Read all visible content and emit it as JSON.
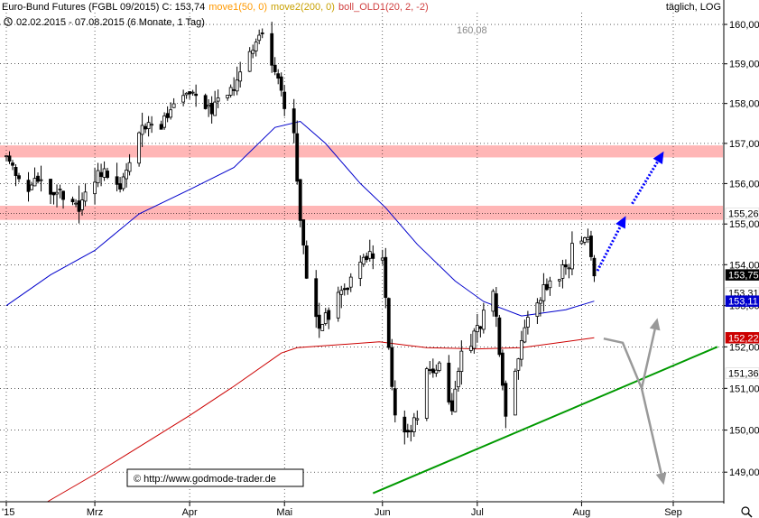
{
  "header": {
    "instrument": "Euro-Bund Futures (FGBL 09/2015) C: 153,74",
    "move1": "move1(50, 0)",
    "move2": "move2(200, 0)",
    "boll": "boll_OLD1(20, 2, -2)",
    "interval": "täglich, LOG",
    "daterange": "02.02.2015 - 07.08.2015 (6 Monate, 1 Tag)",
    "clock_icon": "clock-icon"
  },
  "watermark": "© http://www.godmode-trader.de",
  "high_annotation": "160,08",
  "colors": {
    "move1": "#ff9900",
    "move2": "#c8a000",
    "boll": "#d04040",
    "candle": "#000000",
    "ma50_line": "#0000cc",
    "ma200_line": "#cc0000",
    "zone": "#ffb6b6",
    "trend_line": "#009900",
    "bull_arrow": "#0000ff",
    "scenario_arrow": "#999999"
  },
  "chart_data": {
    "type": "candlestick",
    "ylim": [
      148.3,
      160.3
    ],
    "xlabel": "",
    "ylabel": "",
    "yticks": [
      {
        "value": 149,
        "label": "149,00"
      },
      {
        "value": 150,
        "label": "150,00"
      },
      {
        "value": 151,
        "label": "151,00"
      },
      {
        "value": 152,
        "label": "152,00"
      },
      {
        "value": 153,
        "label": "153,00"
      },
      {
        "value": 154,
        "label": "154,00"
      },
      {
        "value": 155,
        "label": "155,00"
      },
      {
        "value": 156,
        "label": "156,00"
      },
      {
        "value": 157,
        "label": "157,00"
      },
      {
        "value": 158,
        "label": "158,00"
      },
      {
        "value": 159,
        "label": "159,00"
      },
      {
        "value": 160,
        "label": "160,00"
      }
    ],
    "xticks": [
      {
        "date": "2015-02-02",
        "label": "'15"
      },
      {
        "date": "2015-03-02",
        "label": "Mrz"
      },
      {
        "date": "2015-04-01",
        "label": "Apr"
      },
      {
        "date": "2015-05-01",
        "label": "Mai"
      },
      {
        "date": "2015-06-01",
        "label": "Jun"
      },
      {
        "date": "2015-07-01",
        "label": "Jul"
      },
      {
        "date": "2015-08-03",
        "label": "Aug"
      },
      {
        "date": "2015-09-01",
        "label": "Sep"
      }
    ],
    "price_tags": [
      {
        "value": 155.26,
        "label": "155,26",
        "bg": "#ffffff",
        "fg": "#000000"
      },
      {
        "value": 153.75,
        "label": "153,75",
        "bg": "#000000",
        "fg": "#ffffff"
      },
      {
        "value": 153.31,
        "label": "153,31",
        "bg": "#ffffff",
        "fg": "#000000"
      },
      {
        "value": 153.11,
        "label": "153,11",
        "bg": "#0000cc",
        "fg": "#ffffff"
      },
      {
        "value": 152.22,
        "label": "152,22",
        "bg": "#cc0000",
        "fg": "#ffffff"
      },
      {
        "value": 151.36,
        "label": "151,36",
        "bg": "#ffffff",
        "fg": "#000000"
      }
    ],
    "zones": [
      {
        "from": 156.65,
        "to": 156.95
      },
      {
        "from": 155.1,
        "to": 155.45
      }
    ],
    "ma50": [
      [
        "2015-02-02",
        153.0
      ],
      [
        "2015-02-16",
        153.75
      ],
      [
        "2015-03-02",
        154.35
      ],
      [
        "2015-03-16",
        155.25
      ],
      [
        "2015-04-01",
        155.85
      ],
      [
        "2015-04-15",
        156.4
      ],
      [
        "2015-04-28",
        157.4
      ],
      [
        "2015-05-06",
        157.55
      ],
      [
        "2015-05-14",
        157.0
      ],
      [
        "2015-05-25",
        156.0
      ],
      [
        "2015-06-02",
        155.4
      ],
      [
        "2015-06-12",
        154.5
      ],
      [
        "2015-06-24",
        153.6
      ],
      [
        "2015-07-03",
        153.1
      ],
      [
        "2015-07-15",
        152.75
      ],
      [
        "2015-07-29",
        152.9
      ],
      [
        "2015-08-07",
        153.11
      ]
    ],
    "ma200": [
      [
        "2015-02-15",
        148.3
      ],
      [
        "2015-03-02",
        148.95
      ],
      [
        "2015-03-16",
        149.6
      ],
      [
        "2015-04-01",
        150.35
      ],
      [
        "2015-04-15",
        151.05
      ],
      [
        "2015-04-30",
        151.85
      ],
      [
        "2015-05-05",
        151.98
      ],
      [
        "2015-05-31",
        152.12
      ],
      [
        "2015-06-15",
        151.98
      ],
      [
        "2015-07-01",
        151.95
      ],
      [
        "2015-07-15",
        151.98
      ],
      [
        "2015-08-07",
        152.22
      ]
    ],
    "trend_line": [
      [
        "2015-05-29",
        148.5
      ],
      [
        "2015-09-15",
        152.0
      ]
    ],
    "bull_arrows": [
      {
        "from": [
          "2015-08-08",
          153.85
        ],
        "to": [
          "2015-08-17",
          155.2
        ]
      },
      {
        "from": [
          "2015-08-19",
          155.5
        ],
        "to": [
          "2015-08-29",
          156.8
        ]
      }
    ],
    "scenario_path": [
      [
        "2015-08-10",
        152.2
      ],
      [
        "2015-08-16",
        152.1
      ],
      [
        "2015-08-22",
        151.0
      ]
    ],
    "scenario_arrows": [
      {
        "from": [
          "2015-08-22",
          151.0
        ],
        "to": [
          "2015-08-27",
          152.7
        ]
      },
      {
        "from": [
          "2015-08-22",
          151.0
        ],
        "to": [
          "2015-08-29",
          148.7
        ]
      }
    ],
    "anchors": [
      [
        "2015-02-02",
        156.7
      ],
      [
        "2015-02-06",
        156.1
      ],
      [
        "2015-02-13",
        155.9
      ],
      [
        "2015-02-20",
        155.7
      ],
      [
        "2015-02-25",
        155.5
      ],
      [
        "2015-03-02",
        156.2
      ],
      [
        "2015-03-05",
        156.3
      ],
      [
        "2015-03-10",
        156.0
      ],
      [
        "2015-03-13",
        156.5
      ],
      [
        "2015-03-17",
        157.5
      ],
      [
        "2015-03-23",
        157.3
      ],
      [
        "2015-03-27",
        158.0
      ],
      [
        "2015-04-01",
        158.2
      ],
      [
        "2015-04-08",
        157.8
      ],
      [
        "2015-04-15",
        158.5
      ],
      [
        "2015-04-20",
        159.3
      ],
      [
        "2015-04-24",
        159.8
      ],
      [
        "2015-04-28",
        158.8
      ],
      [
        "2015-05-04",
        157.3
      ],
      [
        "2015-05-06",
        155.2
      ],
      [
        "2015-05-08",
        153.8
      ],
      [
        "2015-05-12",
        152.5
      ],
      [
        "2015-05-18",
        153.2
      ],
      [
        "2015-05-22",
        153.6
      ],
      [
        "2015-05-27",
        154.2
      ],
      [
        "2015-06-01",
        154.3
      ],
      [
        "2015-06-03",
        152.0
      ],
      [
        "2015-06-05",
        150.3
      ],
      [
        "2015-06-10",
        149.8
      ],
      [
        "2015-06-15",
        151.3
      ],
      [
        "2015-06-19",
        151.6
      ],
      [
        "2015-06-23",
        150.6
      ],
      [
        "2015-06-26",
        151.8
      ],
      [
        "2015-07-01",
        152.4
      ],
      [
        "2015-07-06",
        153.3
      ],
      [
        "2015-07-10",
        150.2
      ],
      [
        "2015-07-14",
        151.8
      ],
      [
        "2015-07-17",
        152.6
      ],
      [
        "2015-07-22",
        153.4
      ],
      [
        "2015-07-27",
        153.7
      ],
      [
        "2015-07-31",
        154.3
      ],
      [
        "2015-08-05",
        154.7
      ],
      [
        "2015-08-07",
        153.74
      ]
    ]
  }
}
